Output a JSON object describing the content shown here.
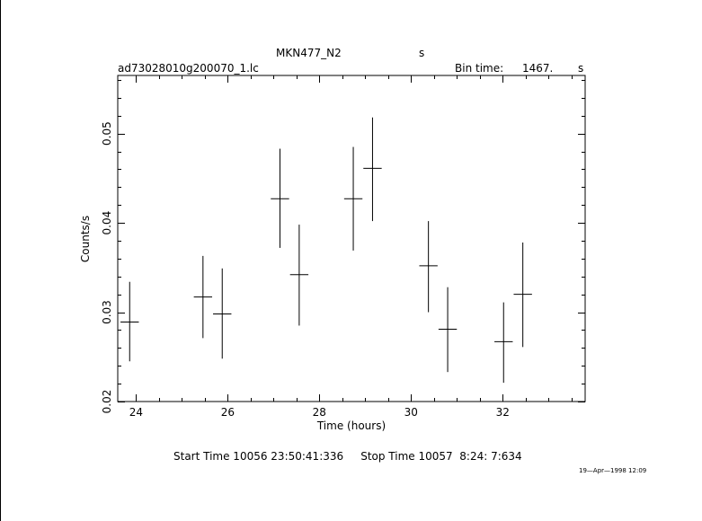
{
  "header": {
    "object_name": "MKN477_N2",
    "object_units": "s",
    "file_name": "ad73028010g200070_1.lc",
    "bin_label": "Bin time:",
    "bin_value": "1467.",
    "bin_units": "s"
  },
  "footer": {
    "times": "Start Time 10056 23:50:41:336     Stop Time 10057  8:24: 7:634",
    "date_stamp": "19—Apr—1998 12:09"
  },
  "chart_data": {
    "type": "scatter",
    "title": "MKN477_N2",
    "xlabel": "Time (hours)",
    "ylabel": "Counts/s",
    "xlim": [
      23.6,
      33.8
    ],
    "ylim": [
      0.02,
      0.0565
    ],
    "x_ticks": [
      24,
      26,
      28,
      30,
      32
    ],
    "y_ticks": [
      0.02,
      0.03,
      0.04,
      0.05
    ],
    "x_tick_labels": [
      "24",
      "26",
      "28",
      "30",
      "32"
    ],
    "y_tick_labels": [
      "0.02",
      "0.03",
      "0.04",
      "0.05"
    ],
    "x_minor_step": 0.5,
    "y_minor_step": 0.002,
    "grid": false,
    "points": [
      {
        "x": 23.86,
        "y": 0.0289,
        "xerr": 0.2,
        "yerr_low": 0.0044,
        "yerr_high": 0.0045
      },
      {
        "x": 25.46,
        "y": 0.0317,
        "xerr": 0.2,
        "yerr_low": 0.0046,
        "yerr_high": 0.0046
      },
      {
        "x": 25.88,
        "y": 0.0298,
        "xerr": 0.2,
        "yerr_low": 0.005,
        "yerr_high": 0.0051
      },
      {
        "x": 27.14,
        "y": 0.0427,
        "xerr": 0.2,
        "yerr_low": 0.0055,
        "yerr_high": 0.0056
      },
      {
        "x": 27.56,
        "y": 0.0342,
        "xerr": 0.2,
        "yerr_low": 0.0057,
        "yerr_high": 0.0056
      },
      {
        "x": 28.74,
        "y": 0.0427,
        "xerr": 0.2,
        "yerr_low": 0.0058,
        "yerr_high": 0.0058
      },
      {
        "x": 29.16,
        "y": 0.0461,
        "xerr": 0.2,
        "yerr_low": 0.0059,
        "yerr_high": 0.0057
      },
      {
        "x": 30.38,
        "y": 0.0352,
        "xerr": 0.2,
        "yerr_low": 0.0052,
        "yerr_high": 0.005
      },
      {
        "x": 30.8,
        "y": 0.0281,
        "xerr": 0.2,
        "yerr_low": 0.0048,
        "yerr_high": 0.0047
      },
      {
        "x": 32.02,
        "y": 0.0267,
        "xerr": 0.2,
        "yerr_low": 0.0046,
        "yerr_high": 0.0044
      },
      {
        "x": 32.44,
        "y": 0.032,
        "xerr": 0.2,
        "yerr_low": 0.0059,
        "yerr_high": 0.0058
      }
    ]
  }
}
